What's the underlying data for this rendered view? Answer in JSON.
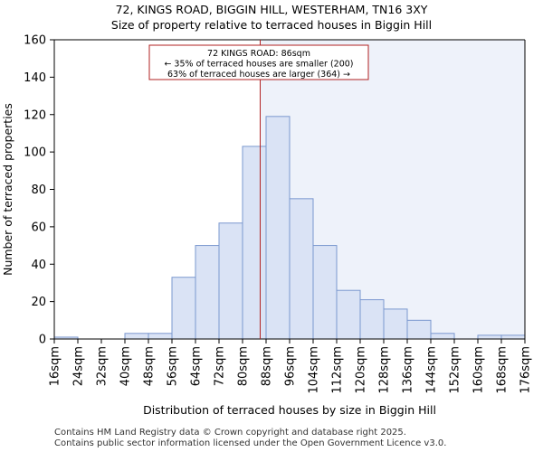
{
  "title_line1": "72, KINGS ROAD, BIGGIN HILL, WESTERHAM, TN16 3XY",
  "title_line2": "Size of property relative to terraced houses in Biggin Hill",
  "footer_line1": "Contains HM Land Registry data © Crown copyright and database right 2025.",
  "footer_line2": "Contains public sector information licensed under the Open Government Licence v3.0.",
  "colors": {
    "bar_fill": "#dae3f5",
    "bar_stroke": "#7b98cf",
    "highlight_fill": "#eef2fa",
    "marker": "#b22222",
    "annotation_border": "#b22222"
  },
  "chart_data": {
    "type": "bar",
    "title": "72, KINGS ROAD, BIGGIN HILL, WESTERHAM, TN16 3XY",
    "subtitle": "Size of property relative to terraced houses in Biggin Hill",
    "xlabel": "Distribution of terraced houses by size in Biggin Hill",
    "ylabel": "Number of terraced properties",
    "bin_edges": [
      16,
      24,
      32,
      40,
      48,
      56,
      64,
      72,
      80,
      88,
      96,
      104,
      112,
      120,
      128,
      136,
      144,
      152,
      160,
      168,
      176
    ],
    "x_tick_labels": [
      "16sqm",
      "24sqm",
      "32sqm",
      "40sqm",
      "48sqm",
      "56sqm",
      "64sqm",
      "72sqm",
      "80sqm",
      "88sqm",
      "96sqm",
      "104sqm",
      "112sqm",
      "120sqm",
      "128sqm",
      "136sqm",
      "144sqm",
      "152sqm",
      "160sqm",
      "168sqm",
      "176sqm"
    ],
    "values": [
      1,
      0,
      0,
      3,
      3,
      33,
      50,
      62,
      103,
      119,
      75,
      50,
      26,
      21,
      16,
      10,
      3,
      0,
      2,
      2
    ],
    "ylim": [
      0,
      160
    ],
    "y_ticks": [
      0,
      20,
      40,
      60,
      80,
      100,
      120,
      140,
      160
    ],
    "property_size": 86,
    "annotation": {
      "line1": "72 KINGS ROAD: 86sqm",
      "line2": "← 35% of terraced houses are smaller (200)",
      "line3": "63% of terraced houses are larger (364) →"
    }
  }
}
